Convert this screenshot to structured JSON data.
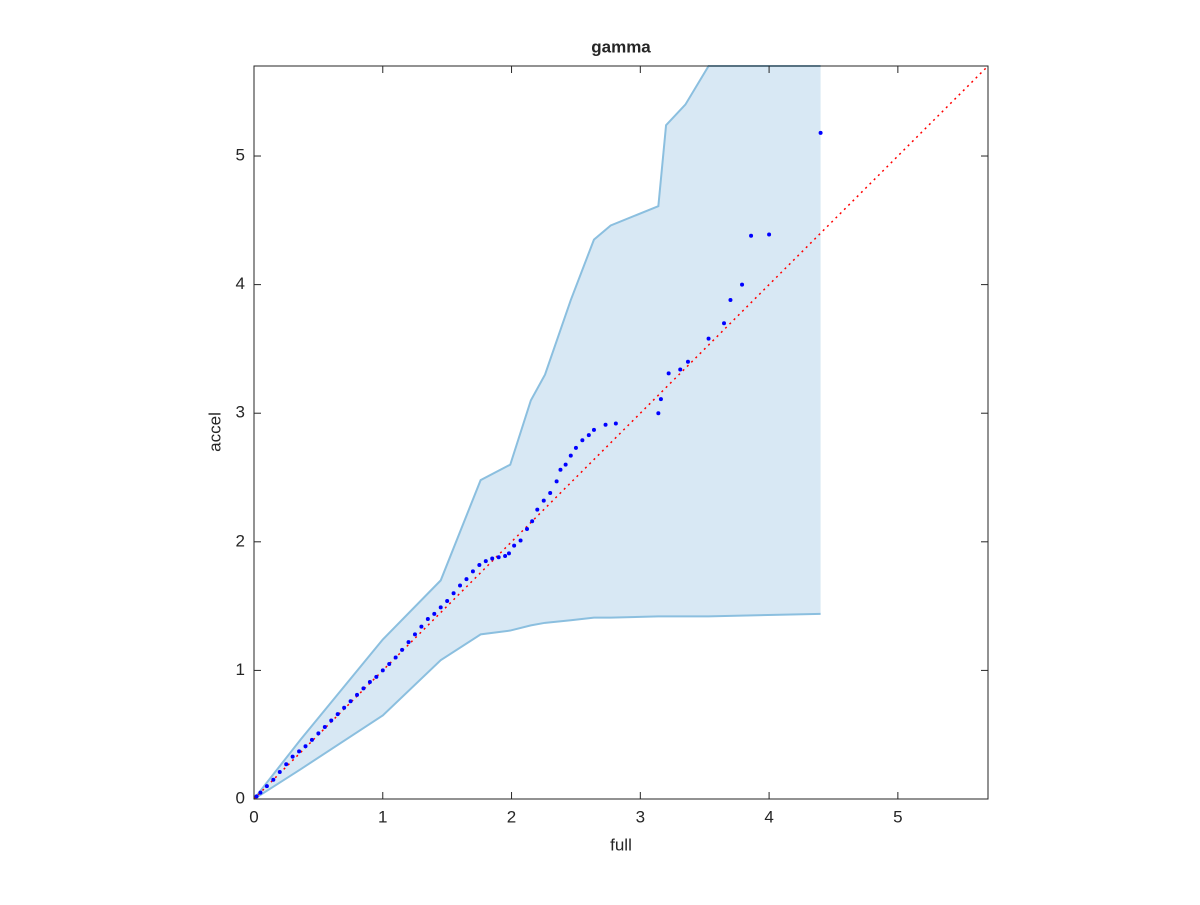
{
  "chart_data": {
    "type": "scatter",
    "title": "gamma",
    "x_label": "full",
    "y_label": "accel",
    "xlim": [
      0,
      5.7
    ],
    "ylim": [
      0,
      5.7
    ],
    "xticks": [
      0,
      1,
      2,
      3,
      4,
      5
    ],
    "yticks": [
      0,
      1,
      2,
      3,
      4,
      5
    ],
    "color": "#0000ff",
    "x": [
      0.02,
      0.05,
      0.1,
      0.15,
      0.2,
      0.25,
      0.3,
      0.35,
      0.4,
      0.45,
      0.5,
      0.55,
      0.6,
      0.65,
      0.7,
      0.75,
      0.8,
      0.85,
      0.9,
      0.95,
      1.0,
      1.05,
      1.1,
      1.15,
      1.2,
      1.25,
      1.3,
      1.35,
      1.4,
      1.45,
      1.5,
      1.55,
      1.6,
      1.65,
      1.7,
      1.75,
      1.8,
      1.85,
      1.9,
      1.95,
      1.98,
      2.02,
      2.07,
      2.12,
      2.16,
      2.2,
      2.25,
      2.3,
      2.35,
      2.38,
      2.42,
      2.46,
      2.5,
      2.55,
      2.6,
      2.64,
      2.73,
      2.81,
      3.14,
      3.16,
      3.22,
      3.31,
      3.37,
      3.53,
      3.65,
      3.7,
      3.79,
      3.86,
      4.0,
      4.4
    ],
    "y": [
      0.02,
      0.05,
      0.1,
      0.15,
      0.21,
      0.27,
      0.33,
      0.37,
      0.41,
      0.46,
      0.51,
      0.56,
      0.61,
      0.66,
      0.71,
      0.76,
      0.81,
      0.86,
      0.91,
      0.95,
      1.0,
      1.05,
      1.1,
      1.16,
      1.22,
      1.28,
      1.34,
      1.4,
      1.44,
      1.49,
      1.54,
      1.6,
      1.66,
      1.71,
      1.77,
      1.82,
      1.85,
      1.87,
      1.88,
      1.89,
      1.91,
      1.97,
      2.01,
      2.1,
      2.16,
      2.25,
      2.32,
      2.38,
      2.47,
      2.56,
      2.6,
      2.67,
      2.73,
      2.79,
      2.83,
      2.87,
      2.91,
      2.92,
      3.0,
      3.11,
      3.31,
      3.34,
      3.4,
      3.58,
      3.7,
      3.88,
      4.0,
      4.38,
      4.39,
      5.18
    ],
    "band": {
      "color": "#d8e8f4",
      "edge_color": "#8bbfdf",
      "x": [
        0,
        0.36,
        1.0,
        1.45,
        1.76,
        1.99,
        2.15,
        2.26,
        2.46,
        2.64,
        2.77,
        3.14,
        3.2,
        3.35,
        3.53,
        4.4
      ],
      "upper": [
        0,
        0.46,
        1.24,
        1.7,
        2.48,
        2.6,
        3.1,
        3.3,
        3.88,
        4.35,
        4.46,
        4.61,
        5.24,
        5.4,
        5.7,
        5.7
      ],
      "lower": [
        0,
        0.23,
        0.65,
        1.08,
        1.28,
        1.31,
        1.35,
        1.37,
        1.39,
        1.41,
        1.41,
        1.42,
        1.42,
        1.42,
        1.42,
        1.44
      ]
    },
    "reference_line": {
      "color": "#ff0000",
      "x": [
        0,
        5.7
      ],
      "y": [
        0,
        5.7
      ]
    }
  }
}
